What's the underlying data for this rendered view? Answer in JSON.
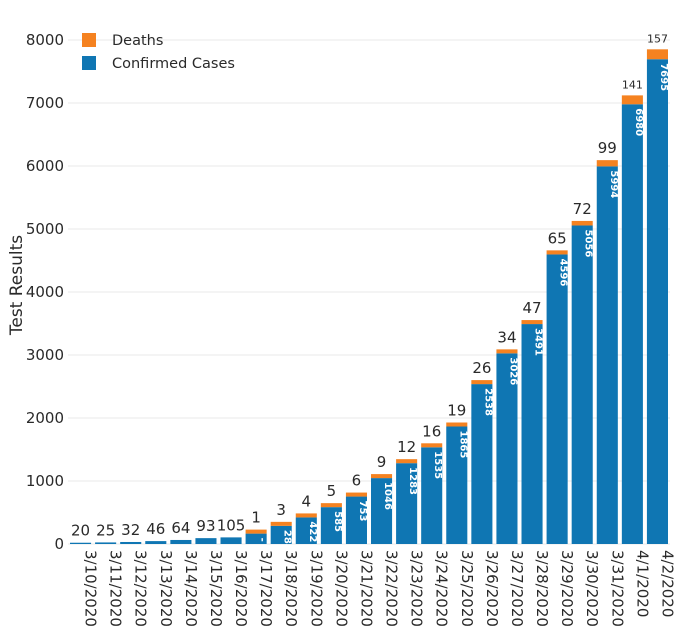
{
  "chart_data": {
    "type": "bar",
    "stacked": true,
    "title": "",
    "xlabel": "",
    "ylabel": "Test Results",
    "ylim": [
      0,
      8000
    ],
    "yticks": [
      0,
      1000,
      2000,
      3000,
      4000,
      5000,
      6000,
      7000,
      8000
    ],
    "grid": "horizontal",
    "legend_position": "top-left",
    "categories": [
      "3/10/2020",
      "3/11/2020",
      "3/12/2020",
      "3/13/2020",
      "3/14/2020",
      "3/15/2020",
      "3/16/2020",
      "3/17/2020",
      "3/18/2020",
      "3/19/2020",
      "3/20/2020",
      "3/21/2020",
      "3/22/2020",
      "3/23/2020",
      "3/24/2020",
      "3/25/2020",
      "3/26/2020",
      "3/27/2020",
      "3/28/2020",
      "3/29/2020",
      "3/30/2020",
      "3/31/2020",
      "4/1/2020",
      "4/2/2020"
    ],
    "series": [
      {
        "name": "Confirmed Cases",
        "color": "#0f76b3",
        "values": [
          20,
          25,
          32,
          46,
          64,
          93,
          105,
          165,
          288,
          422,
          585,
          753,
          1046,
          1283,
          1535,
          1865,
          2538,
          3026,
          3491,
          4596,
          5056,
          5994,
          6980,
          7695
        ],
        "labels": [
          "20",
          "25",
          "32",
          "46",
          "64",
          "93",
          "105",
          "-",
          "288",
          "422",
          "585",
          "753",
          "1046",
          "1283",
          "1535",
          "1865",
          "2538",
          "3026",
          "3491",
          "4596",
          "5056",
          "5994",
          "6980",
          "7695"
        ]
      },
      {
        "name": "Deaths",
        "color": "#f58220",
        "values": [
          0,
          0,
          0,
          0,
          0,
          0,
          0,
          1,
          3,
          4,
          5,
          6,
          9,
          12,
          16,
          19,
          26,
          34,
          47,
          65,
          72,
          99,
          141,
          157
        ],
        "labels": [
          "",
          "",
          "",
          "",
          "",
          "",
          "",
          "1",
          "3",
          "4",
          "5",
          "6",
          "9",
          "12",
          "16",
          "19",
          "26",
          "34",
          "47",
          "65",
          "72",
          "99",
          "141",
          "157"
        ]
      }
    ]
  }
}
